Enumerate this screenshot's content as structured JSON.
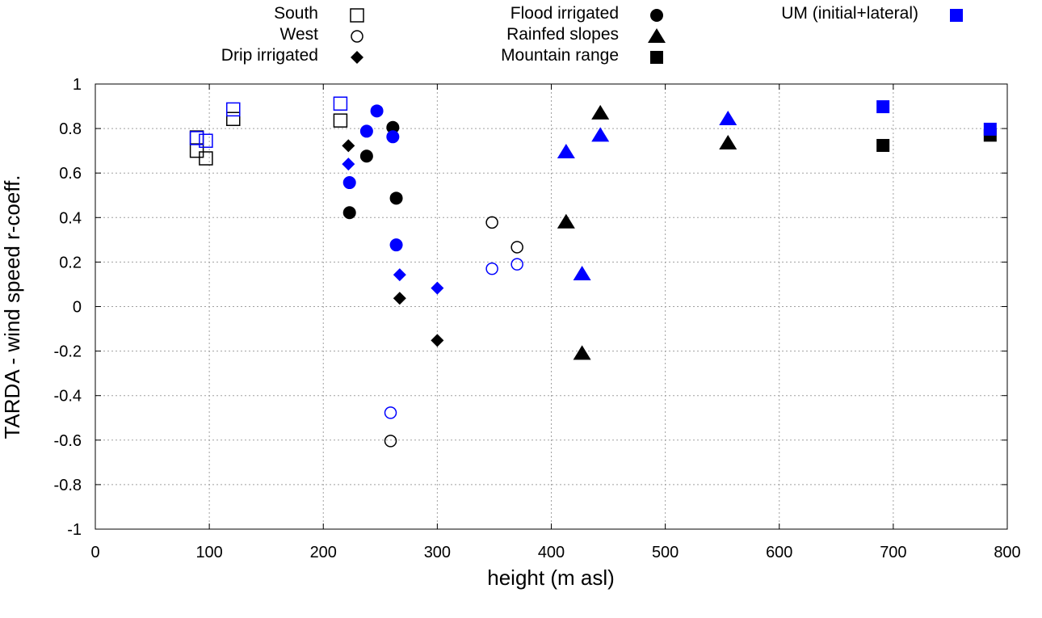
{
  "chart_data": {
    "type": "scatter",
    "title": "",
    "xlabel": "height (m asl)",
    "ylabel": "TARDA - wind speed r-coeff.",
    "xlim": [
      0,
      800
    ],
    "ylim": [
      -1,
      1
    ],
    "xticks": [
      0,
      100,
      200,
      300,
      400,
      500,
      600,
      700,
      800
    ],
    "yticks": [
      -1,
      -0.8,
      -0.6,
      -0.4,
      -0.2,
      0,
      0.2,
      0.4,
      0.6,
      0.8,
      1
    ],
    "grid": true,
    "legend_placement": "top-outside",
    "legend": [
      {
        "label": "South",
        "marker": "open-square",
        "color": "#000000"
      },
      {
        "label": "West",
        "marker": "open-circle",
        "color": "#000000"
      },
      {
        "label": "Drip irrigated",
        "marker": "diamond",
        "color": "#000000"
      },
      {
        "label": "Flood irrigated",
        "marker": "filled-circle",
        "color": "#000000"
      },
      {
        "label": "Rainfed slopes",
        "marker": "triangle",
        "color": "#000000"
      },
      {
        "label": "Mountain range",
        "marker": "filled-square",
        "color": "#000000"
      },
      {
        "label": "UM (initial+lateral)",
        "marker": "filled-square",
        "color": "#0000ff"
      }
    ],
    "series": [
      {
        "group": "South",
        "marker": "open-square",
        "color": "#000000",
        "points": [
          [
            89,
            0.76
          ],
          [
            89,
            0.7
          ],
          [
            97,
            0.666
          ],
          [
            121,
            0.843
          ],
          [
            215,
            0.836
          ]
        ]
      },
      {
        "group": "South",
        "marker": "open-square",
        "color": "#0000ff",
        "points": [
          [
            89,
            0.757
          ],
          [
            97,
            0.745
          ],
          [
            121,
            0.886
          ],
          [
            215,
            0.912
          ]
        ]
      },
      {
        "group": "West",
        "marker": "open-circle",
        "color": "#000000",
        "points": [
          [
            348,
            0.378
          ],
          [
            370,
            0.267
          ],
          [
            259,
            -0.604
          ]
        ]
      },
      {
        "group": "West",
        "marker": "open-circle",
        "color": "#0000ff",
        "points": [
          [
            348,
            0.17
          ],
          [
            370,
            0.19
          ],
          [
            259,
            -0.477
          ]
        ]
      },
      {
        "group": "Drip irrigated",
        "marker": "diamond",
        "color": "#000000",
        "points": [
          [
            222,
            0.723
          ],
          [
            267,
            0.037
          ],
          [
            300,
            -0.152
          ]
        ]
      },
      {
        "group": "Drip irrigated",
        "marker": "diamond",
        "color": "#0000ff",
        "points": [
          [
            222,
            0.64
          ],
          [
            267,
            0.143
          ],
          [
            300,
            0.083
          ]
        ]
      },
      {
        "group": "Flood irrigated",
        "marker": "filled-circle",
        "color": "#000000",
        "points": [
          [
            261,
            0.805
          ],
          [
            238,
            0.676
          ],
          [
            264,
            0.487
          ],
          [
            223,
            0.422
          ]
        ]
      },
      {
        "group": "Flood irrigated",
        "marker": "filled-circle",
        "color": "#0000ff",
        "points": [
          [
            247,
            0.879
          ],
          [
            238,
            0.788
          ],
          [
            261,
            0.763
          ],
          [
            223,
            0.557
          ],
          [
            264,
            0.277
          ]
        ]
      },
      {
        "group": "Rainfed slopes",
        "marker": "triangle",
        "color": "#000000",
        "points": [
          [
            443,
            0.87
          ],
          [
            413,
            0.38
          ],
          [
            427,
            -0.21
          ],
          [
            555,
            0.735
          ]
        ]
      },
      {
        "group": "Rainfed slopes",
        "marker": "triangle",
        "color": "#0000ff",
        "points": [
          [
            443,
            0.77
          ],
          [
            413,
            0.695
          ],
          [
            427,
            0.147
          ],
          [
            555,
            0.844
          ]
        ]
      },
      {
        "group": "Mountain range",
        "marker": "filled-square",
        "color": "#000000",
        "points": [
          [
            691,
            0.724
          ],
          [
            785,
            0.77
          ]
        ]
      },
      {
        "group": "Mountain range",
        "marker": "filled-square",
        "color": "#0000ff",
        "points": [
          [
            691,
            0.898
          ],
          [
            785,
            0.797
          ]
        ]
      }
    ]
  }
}
